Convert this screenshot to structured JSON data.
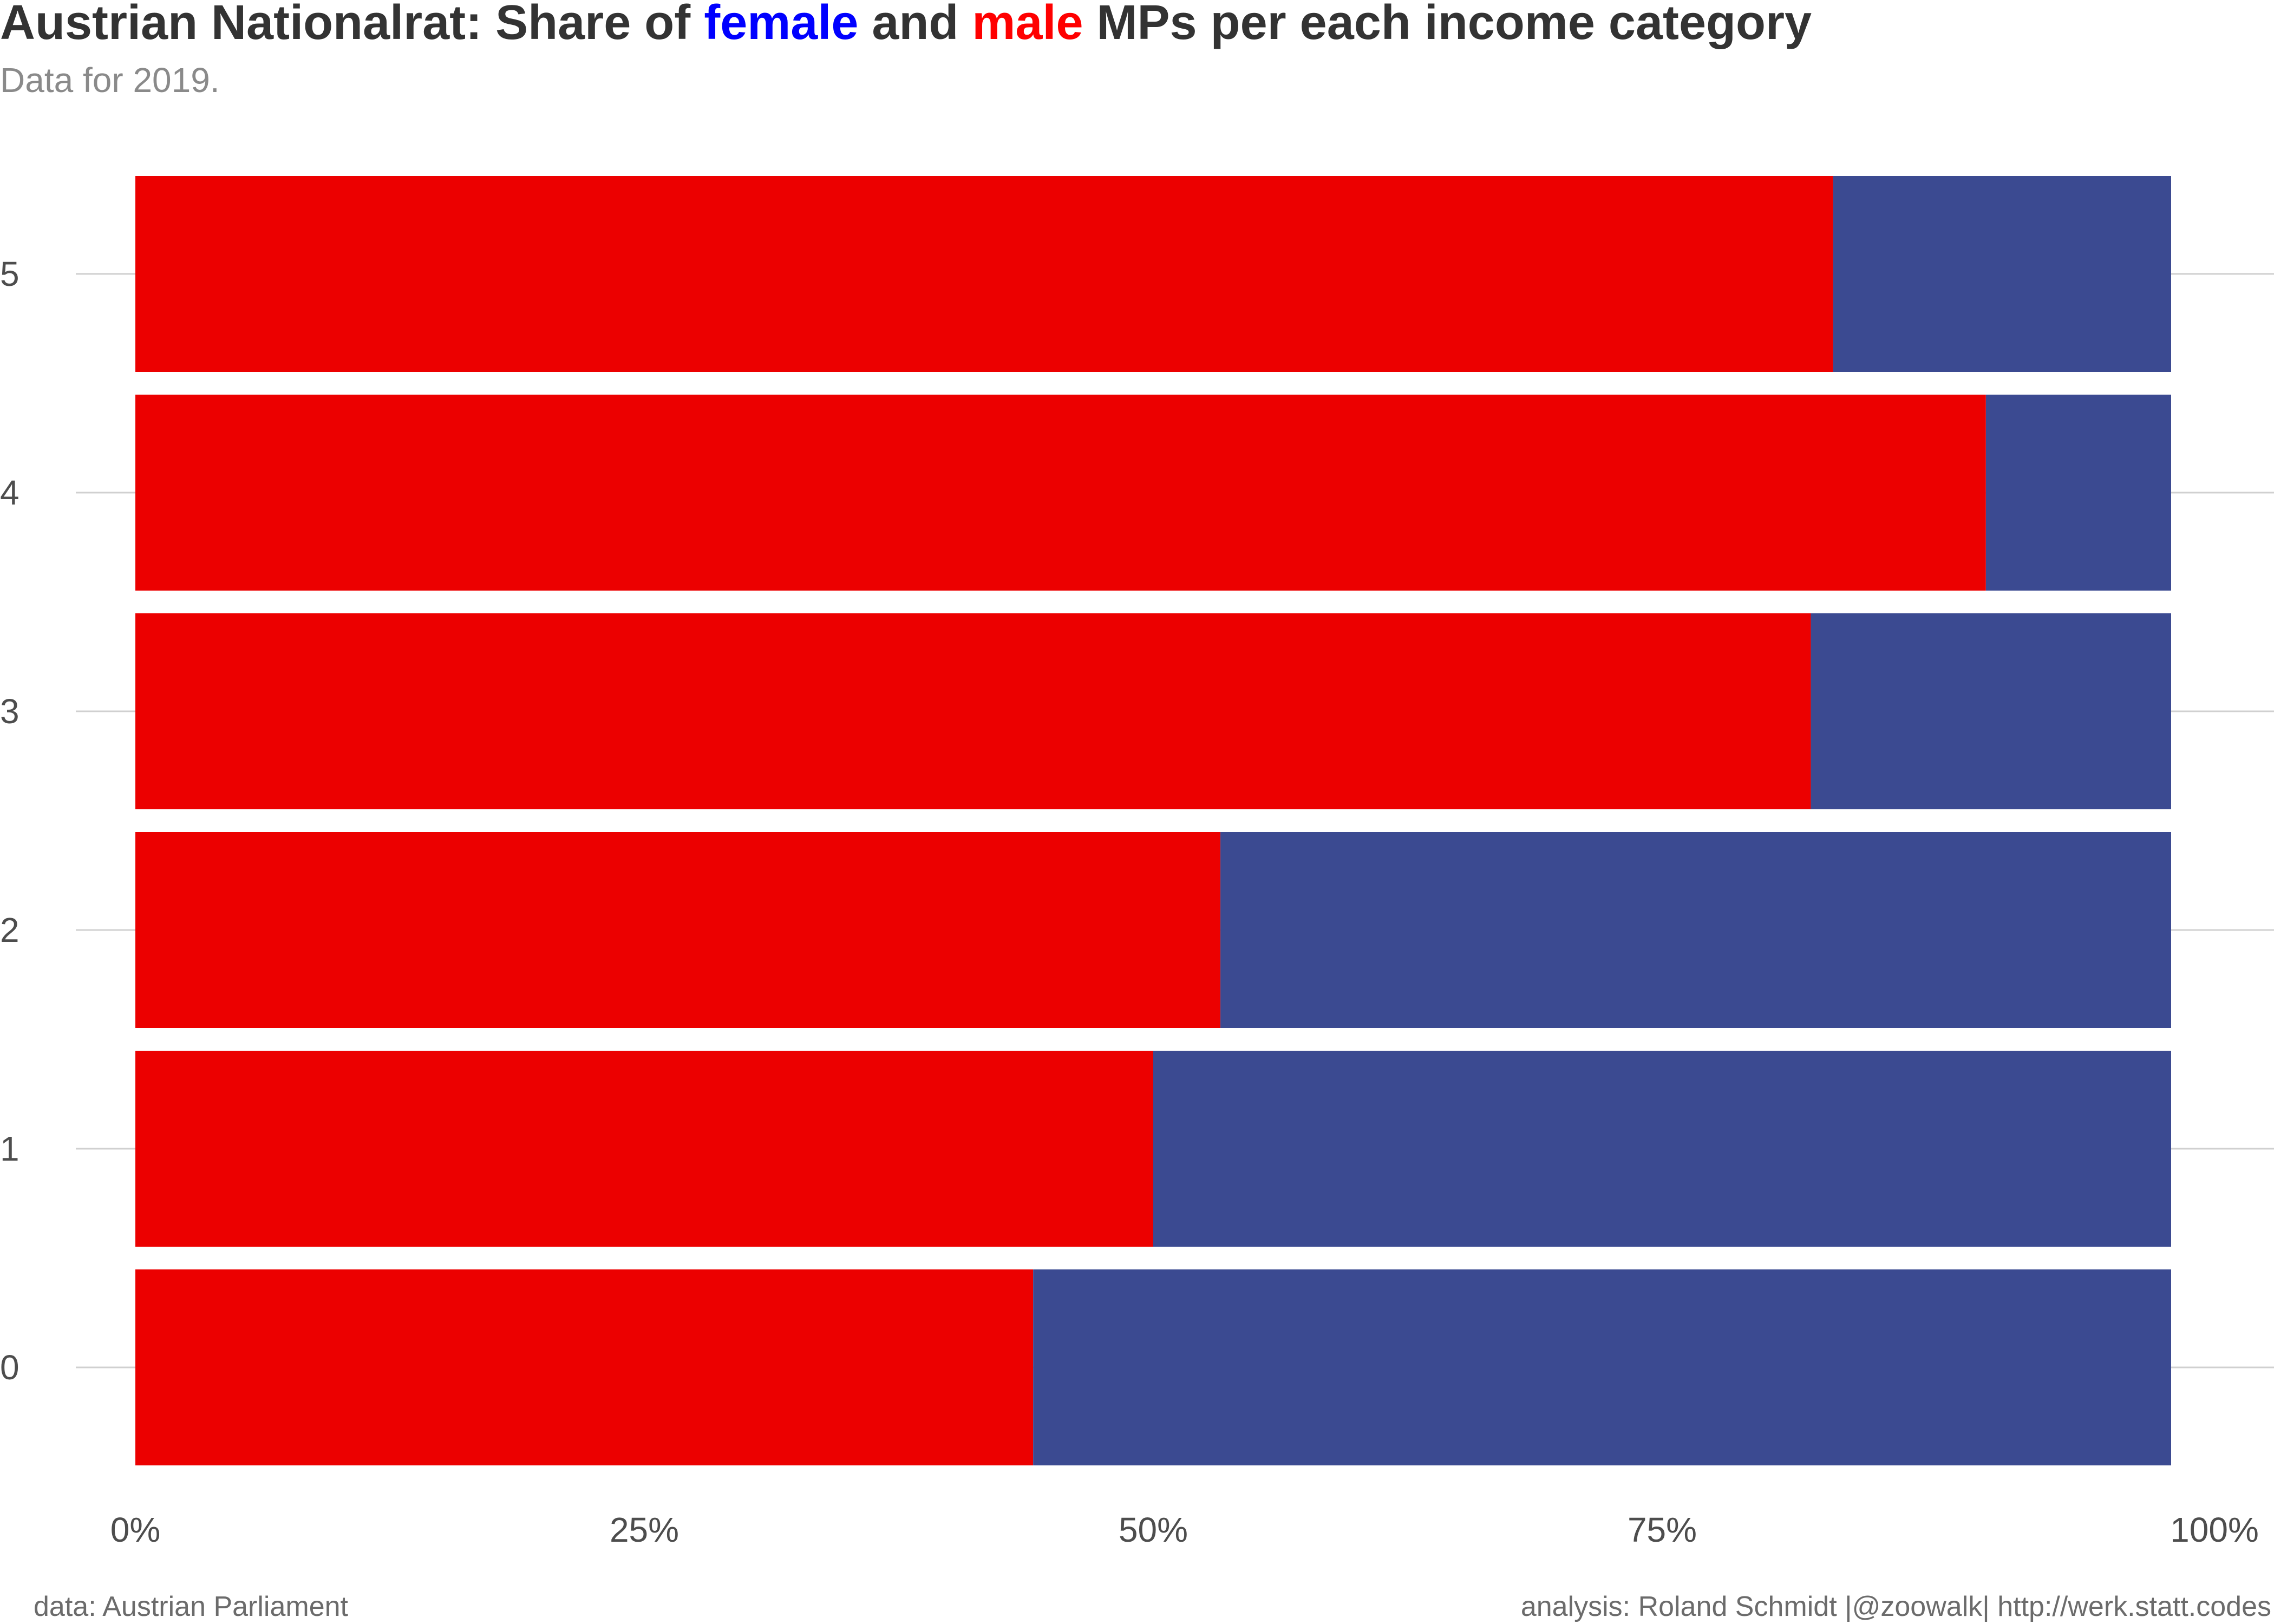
{
  "title": {
    "prefix": "Austrian Nationalrat: Share of ",
    "female_word": "female",
    "middle": " and ",
    "male_word": "male",
    "suffix": " MPs per each income category"
  },
  "subtitle": "Data for 2019.",
  "caption_left": "data: Austrian Parliament",
  "caption_right": "analysis: Roland Schmidt |@zoowalk| http://werk.statt.codes",
  "colors": {
    "female": "#3b4a91",
    "male": "#ec0000",
    "title_female": "#0000ff",
    "title_male": "#ff0000"
  },
  "chart_data": {
    "type": "bar",
    "orientation": "horizontal",
    "stacked": true,
    "categories": [
      "5",
      "4",
      "3",
      "2",
      "1",
      "0"
    ],
    "series": [
      {
        "name": "male",
        "values": [
          0.834,
          0.909,
          0.823,
          0.533,
          0.5,
          0.441
        ]
      },
      {
        "name": "female",
        "values": [
          0.166,
          0.091,
          0.177,
          0.467,
          0.5,
          0.559
        ]
      }
    ],
    "x_ticks": [
      "0%",
      "25%",
      "50%",
      "75%",
      "100%"
    ],
    "x_tick_values": [
      0,
      0.25,
      0.5,
      0.75,
      1.0
    ],
    "xlim": [
      0,
      1
    ],
    "xlabel": "",
    "ylabel": "",
    "grid": true,
    "legend": "none (colors explained in title)"
  }
}
